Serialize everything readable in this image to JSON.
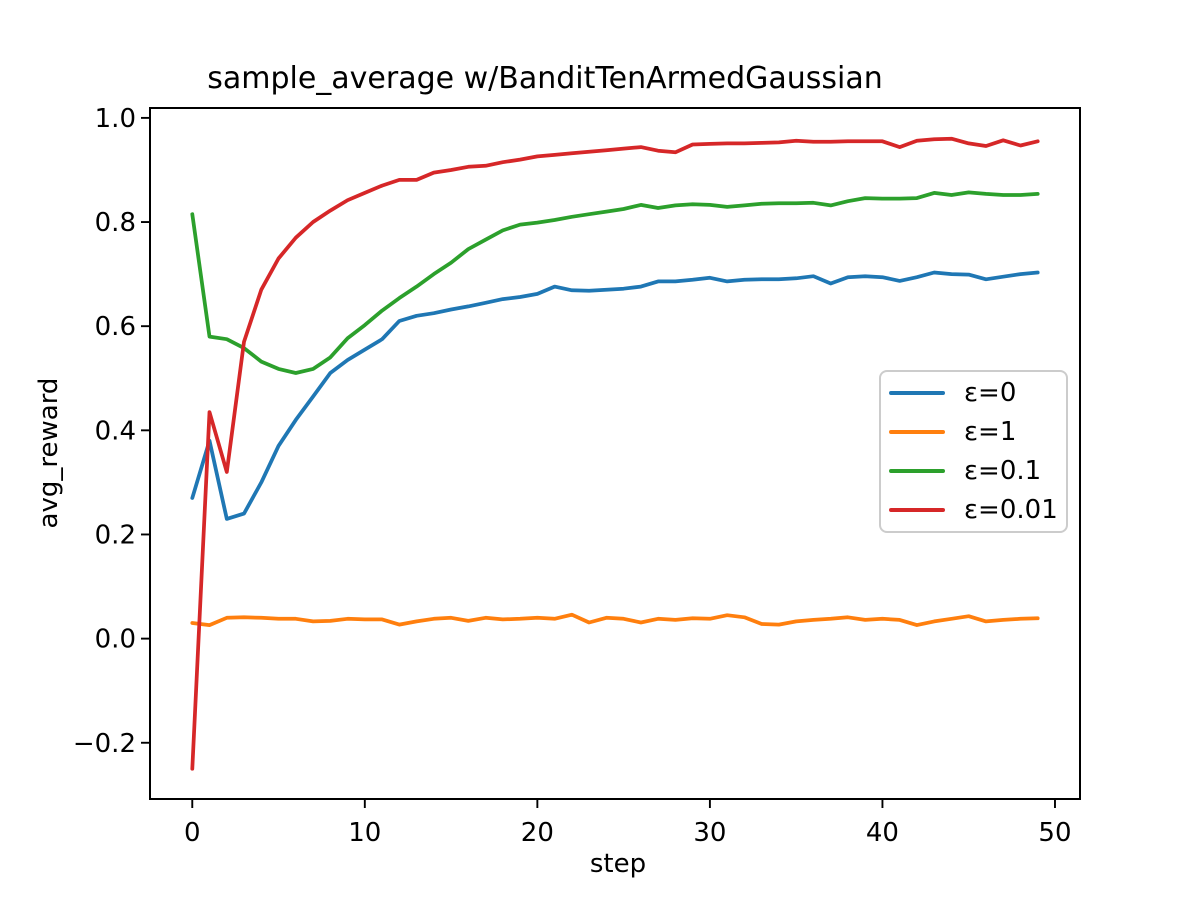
{
  "chart_data": {
    "type": "line",
    "title": "sample_average w/BanditTenArmedGaussian",
    "xlabel": "step",
    "ylabel": "avg_reward",
    "grid": false,
    "background": "#ffffff",
    "xlim": [
      -2.45,
      51.45
    ],
    "ylim": [
      -0.308,
      1.019
    ],
    "xticks": {
      "values": [
        0,
        10,
        20,
        30,
        40,
        50
      ],
      "labels": [
        "0",
        "10",
        "20",
        "30",
        "40",
        "50"
      ]
    },
    "yticks": {
      "values": [
        1.0,
        0.8,
        0.6,
        0.4,
        0.2,
        0.0,
        -0.2
      ],
      "labels": [
        "1.0",
        "0.8",
        "0.6",
        "0.4",
        "0.2",
        "0.0",
        "−0.2"
      ]
    },
    "legend": {
      "position": "center-right",
      "border_color": "#cccccc"
    },
    "x": [
      0,
      1,
      2,
      3,
      4,
      5,
      6,
      7,
      8,
      9,
      10,
      11,
      12,
      13,
      14,
      15,
      16,
      17,
      18,
      19,
      20,
      21,
      22,
      23,
      24,
      25,
      26,
      27,
      28,
      29,
      30,
      31,
      32,
      33,
      34,
      35,
      36,
      37,
      38,
      39,
      40,
      41,
      42,
      43,
      44,
      45,
      46,
      47,
      48,
      49
    ],
    "series": [
      {
        "id": "eps-0",
        "name": "ε=0",
        "color": "#1f77b4",
        "values": [
          0.27,
          0.38,
          0.23,
          0.24,
          0.3,
          0.37,
          0.42,
          0.465,
          0.51,
          0.535,
          0.555,
          0.575,
          0.61,
          0.62,
          0.625,
          0.632,
          0.638,
          0.645,
          0.652,
          0.656,
          0.662,
          0.676,
          0.669,
          0.668,
          0.67,
          0.672,
          0.676,
          0.686,
          0.686,
          0.689,
          0.693,
          0.686,
          0.689,
          0.69,
          0.69,
          0.692,
          0.696,
          0.682,
          0.694,
          0.696,
          0.694,
          0.687,
          0.694,
          0.703,
          0.7,
          0.699,
          0.69,
          0.695,
          0.7,
          0.703
        ]
      },
      {
        "id": "eps-1",
        "name": "ε=1",
        "color": "#ff7f0e",
        "values": [
          0.03,
          0.026,
          0.04,
          0.041,
          0.04,
          0.038,
          0.038,
          0.033,
          0.034,
          0.038,
          0.037,
          0.037,
          0.027,
          0.033,
          0.038,
          0.04,
          0.034,
          0.04,
          0.037,
          0.038,
          0.04,
          0.038,
          0.046,
          0.031,
          0.04,
          0.038,
          0.031,
          0.038,
          0.036,
          0.039,
          0.038,
          0.045,
          0.041,
          0.028,
          0.027,
          0.033,
          0.036,
          0.038,
          0.041,
          0.036,
          0.038,
          0.036,
          0.026,
          0.033,
          0.038,
          0.043,
          0.033,
          0.036,
          0.038,
          0.039
        ]
      },
      {
        "id": "eps-0.1",
        "name": "ε=0.1",
        "color": "#2ca02c",
        "values": [
          0.815,
          0.58,
          0.575,
          0.558,
          0.532,
          0.518,
          0.51,
          0.518,
          0.54,
          0.577,
          0.602,
          0.63,
          0.654,
          0.676,
          0.7,
          0.722,
          0.748,
          0.766,
          0.784,
          0.795,
          0.799,
          0.804,
          0.81,
          0.815,
          0.82,
          0.825,
          0.833,
          0.827,
          0.832,
          0.834,
          0.833,
          0.829,
          0.832,
          0.835,
          0.836,
          0.836,
          0.837,
          0.832,
          0.84,
          0.846,
          0.845,
          0.845,
          0.846,
          0.856,
          0.852,
          0.857,
          0.854,
          0.852,
          0.852,
          0.854
        ]
      },
      {
        "id": "eps-0.01",
        "name": "ε=0.01",
        "color": "#d62728",
        "values": [
          -0.25,
          0.435,
          0.32,
          0.57,
          0.67,
          0.73,
          0.77,
          0.8,
          0.822,
          0.842,
          0.856,
          0.87,
          0.881,
          0.881,
          0.895,
          0.9,
          0.906,
          0.908,
          0.915,
          0.92,
          0.926,
          0.929,
          0.932,
          0.935,
          0.938,
          0.941,
          0.944,
          0.937,
          0.934,
          0.949,
          0.95,
          0.951,
          0.951,
          0.952,
          0.953,
          0.956,
          0.954,
          0.954,
          0.955,
          0.955,
          0.955,
          0.944,
          0.956,
          0.959,
          0.96,
          0.951,
          0.946,
          0.957,
          0.947,
          0.955
        ]
      }
    ]
  }
}
